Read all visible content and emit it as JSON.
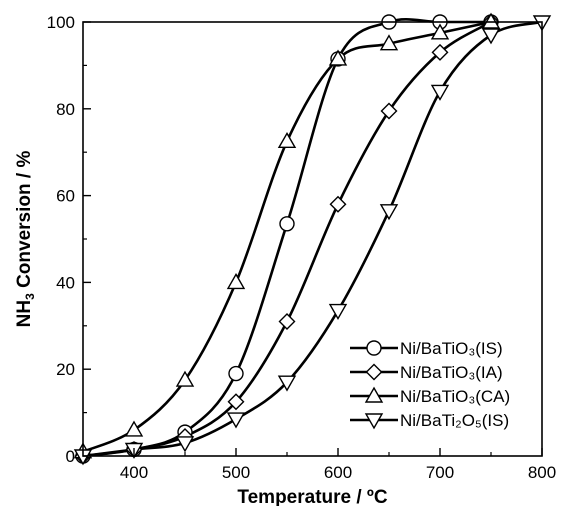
{
  "chart_data": {
    "type": "line",
    "xlabel": "Temperature / ºC",
    "ylabel_main": "NH",
    "ylabel_sub": "3",
    "ylabel_rest": " Conversion / %",
    "xlim": [
      350,
      800
    ],
    "ylim": [
      0,
      100
    ],
    "xticks": [
      400,
      500,
      600,
      700,
      800
    ],
    "yticks": [
      0,
      20,
      40,
      60,
      80,
      100
    ],
    "legend_position": "bottom-right",
    "grid": false,
    "series": [
      {
        "name": "Ni/BaTiO₃(IS)",
        "marker": "circle",
        "x": [
          350,
          400,
          450,
          500,
          550,
          600,
          650,
          700,
          750
        ],
        "y": [
          0,
          1.5,
          5.5,
          19,
          53.5,
          91.5,
          100,
          100,
          100
        ]
      },
      {
        "name": "Ni/BaTiO₃(IA)",
        "marker": "diamond",
        "x": [
          350,
          400,
          450,
          500,
          550,
          600,
          650,
          700,
          750
        ],
        "y": [
          0,
          1.5,
          4.5,
          12.5,
          31,
          58,
          79.5,
          93,
          100
        ]
      },
      {
        "name": "Ni/BaTiO₃(CA)",
        "marker": "triangle-up",
        "x": [
          350,
          400,
          450,
          500,
          550,
          600,
          650,
          700,
          750
        ],
        "y": [
          1,
          6,
          17.5,
          40,
          72.5,
          91.5,
          95,
          97.5,
          100
        ]
      },
      {
        "name": "Ni/BaTi₂O₅(IS)",
        "marker": "triangle-down",
        "x": [
          350,
          400,
          450,
          500,
          550,
          600,
          650,
          700,
          750,
          800
        ],
        "y": [
          0,
          1.5,
          3,
          8.5,
          17,
          33.5,
          56.5,
          84,
          97,
          100
        ]
      }
    ]
  }
}
